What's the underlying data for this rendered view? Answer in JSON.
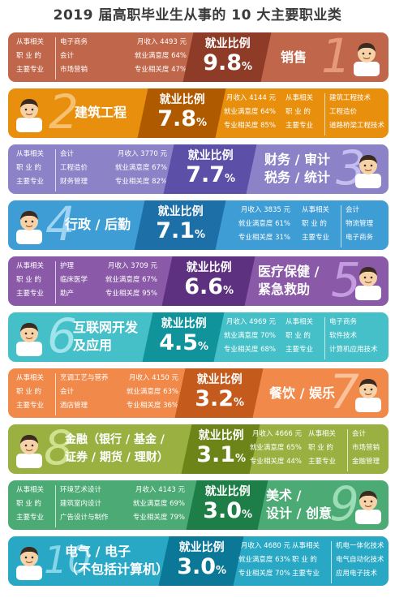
{
  "title": "2019 届高职毕业生从事的 10 大主要职业类",
  "share_label": "就业比例",
  "labels": {
    "l1": "从事相关",
    "l2": "职 业 的",
    "l3": "主要专业"
  },
  "rows": [
    {
      "rank": "1",
      "category": "销售",
      "ratio": "9.8",
      "pct": "%",
      "income": "月收入 4493 元",
      "satisfaction": "就业满意度 64%",
      "relevance": "专业相关度 47%",
      "majors": [
        "电子商务",
        "会计",
        "市场营销"
      ],
      "color": "#c0664a",
      "ratio_color": "#8e3c28",
      "num_color": "#e69a7a"
    },
    {
      "rank": "2",
      "category": "建筑工程",
      "ratio": "7.8",
      "pct": "%",
      "income": "月收入 4144 元",
      "satisfaction": "就业满意度 64%",
      "relevance": "专业相关度 85%",
      "majors": [
        "建筑工程技术",
        "工程造价",
        "道路桥梁工程技术"
      ],
      "color": "#e8900e",
      "ratio_color": "#b05a00",
      "num_color": "#f7c070"
    },
    {
      "rank": "3",
      "category_line1": "财务 / 审计",
      "category_line2": "税务 / 统计",
      "ratio": "7.7",
      "pct": "%",
      "income": "月收入 3770 元",
      "satisfaction": "就业满意度 67%",
      "relevance": "专业相关度 82%",
      "majors": [
        "会计",
        "工程造价",
        "财务管理"
      ],
      "color": "#8c82c8",
      "ratio_color": "#5c4fa8",
      "num_color": "#c4bdf0"
    },
    {
      "rank": "4",
      "category": "行政 / 后勤",
      "ratio": "7.1",
      "pct": "%",
      "income": "月收入 3835 元",
      "satisfaction": "就业满意度 61%",
      "relevance": "专业相关度 31%",
      "majors": [
        "会计",
        "物流管理",
        "电子商务"
      ],
      "color": "#3d9dd4",
      "ratio_color": "#1d6fa8",
      "num_color": "#9ed4f2"
    },
    {
      "rank": "5",
      "category_line1": "医疗保健 /",
      "category_line2": "紧急救助",
      "ratio": "6.6",
      "pct": "%",
      "income": "月收入 3709 元",
      "satisfaction": "就业满意度 67%",
      "relevance": "专业相关度 95%",
      "majors": [
        "护理",
        "临床医学",
        "助产"
      ],
      "color": "#8a5aa8",
      "ratio_color": "#5d3080",
      "num_color": "#c49ae0"
    },
    {
      "rank": "6",
      "category_line1": "互联网开发",
      "category_line2": "及应用",
      "ratio": "4.5",
      "pct": "%",
      "income": "月收入 4969 元",
      "satisfaction": "就业满意度 70%",
      "relevance": "专业相关度 68%",
      "majors": [
        "电子商务",
        "软件技术",
        "计算机应用技术"
      ],
      "color": "#45c0c8",
      "ratio_color": "#11939c",
      "num_color": "#9ee4ea"
    },
    {
      "rank": "7",
      "category": "餐饮 / 娱乐",
      "ratio": "3.2",
      "pct": "%",
      "income": "月收入 4150 元",
      "satisfaction": "就业满意度 63%",
      "relevance": "专业相关度 36%",
      "majors": [
        "烹调工艺与营养",
        "会计",
        "酒店管理"
      ],
      "color": "#f0894a",
      "ratio_color": "#c45a1c",
      "num_color": "#f9c29a"
    },
    {
      "rank": "8",
      "category_line1": "金融（银行 / 基金 /",
      "category_line2": "证券 / 期货 / 理财）",
      "ratio": "3.1",
      "pct": "%",
      "income": "月收入 4666 元",
      "satisfaction": "就业满意度 65%",
      "relevance": "专业相关度 44%",
      "majors": [
        "会计",
        "市场营销",
        "金融管理"
      ],
      "color": "#9ab040",
      "ratio_color": "#6c8418",
      "num_color": "#cfe08e"
    },
    {
      "rank": "9",
      "category_line1": "美术 /",
      "category_line2": "设计 / 创意",
      "ratio": "3.0",
      "pct": "%",
      "income": "月收入 4143 元",
      "satisfaction": "就业满意度 69%",
      "relevance": "专业相关度 79%",
      "majors": [
        "环境艺术设计",
        "建筑室内设计",
        "广告设计与制作"
      ],
      "color": "#4caa74",
      "ratio_color": "#1e7e48",
      "num_color": "#9cdcb6"
    },
    {
      "rank": "10",
      "category_line1": "电气 / 电子",
      "category_line2": "（不包括计算机）",
      "ratio": "3.0",
      "pct": "%",
      "income": "月收入 4680 元",
      "satisfaction": "就业满意度 63%",
      "relevance": "专业相关度 70%",
      "majors": [
        "机电一体化技术",
        "电气自动化技术",
        "应用电子技术"
      ],
      "color": "#28a8c4",
      "ratio_color": "#0a7896",
      "num_color": "#86d6ea"
    }
  ]
}
